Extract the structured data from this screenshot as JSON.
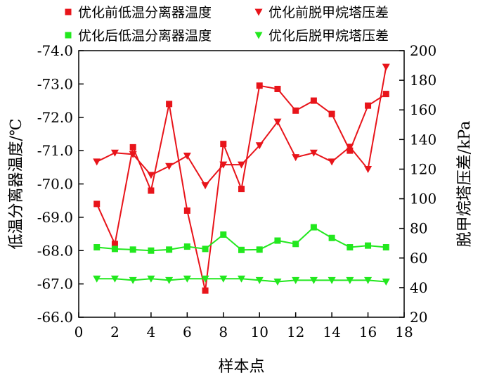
{
  "chart_data": {
    "type": "line",
    "xlabel": "样本点",
    "ylabel_left": "低温分离器温度/℃",
    "ylabel_right": "脱甲烷塔压差/kPa",
    "xlim": [
      0,
      18
    ],
    "xticks": [
      0,
      2,
      4,
      6,
      8,
      10,
      12,
      14,
      16,
      18
    ],
    "ylim_left": [
      -66.0,
      -74.0
    ],
    "yticks_left": [
      "-66.0",
      "-67.0",
      "-68.0",
      "-69.0",
      "-70.0",
      "-71.0",
      "-72.0",
      "-73.0",
      "-74.0"
    ],
    "ylim_right": [
      20,
      200
    ],
    "yticks_right": [
      20,
      40,
      60,
      80,
      100,
      120,
      140,
      160,
      180,
      200
    ],
    "legend_position": "top",
    "grid": false,
    "x": [
      1,
      2,
      3,
      4,
      5,
      6,
      7,
      8,
      9,
      10,
      11,
      12,
      13,
      14,
      15,
      16,
      17
    ],
    "series": [
      {
        "name": "优化前低温分离器温度",
        "axis": "left",
        "marker": "square",
        "color": "#e8141a",
        "values": [
          -69.4,
          -68.2,
          -71.1,
          -69.8,
          -72.4,
          -69.2,
          -66.8,
          -71.2,
          -69.85,
          -72.95,
          -72.85,
          -72.2,
          -72.5,
          -72.1,
          -71.0,
          -72.35,
          -72.7
        ]
      },
      {
        "name": "优化前脱甲烷塔压差",
        "axis": "right",
        "marker": "triangle-down",
        "color": "#e8141a",
        "values": [
          125,
          131,
          130,
          116,
          122,
          129,
          109,
          123,
          123,
          136,
          152,
          128,
          131,
          125,
          135,
          120,
          189
        ]
      },
      {
        "name": "优化后低温分离器温度",
        "axis": "left",
        "marker": "square",
        "color": "#22e81e",
        "values": [
          -68.1,
          -68.05,
          -68.03,
          -68.0,
          -68.03,
          -68.12,
          -68.05,
          -68.48,
          -68.02,
          -68.03,
          -68.3,
          -68.2,
          -68.7,
          -68.38,
          -68.1,
          -68.15,
          -68.1
        ]
      },
      {
        "name": "优化后脱甲烷塔压差",
        "axis": "right",
        "marker": "triangle-down",
        "color": "#22e81e",
        "values": [
          46,
          46,
          45,
          46,
          45,
          46,
          46,
          46,
          46,
          45,
          44,
          45,
          45,
          45,
          45,
          45,
          44
        ]
      }
    ]
  }
}
